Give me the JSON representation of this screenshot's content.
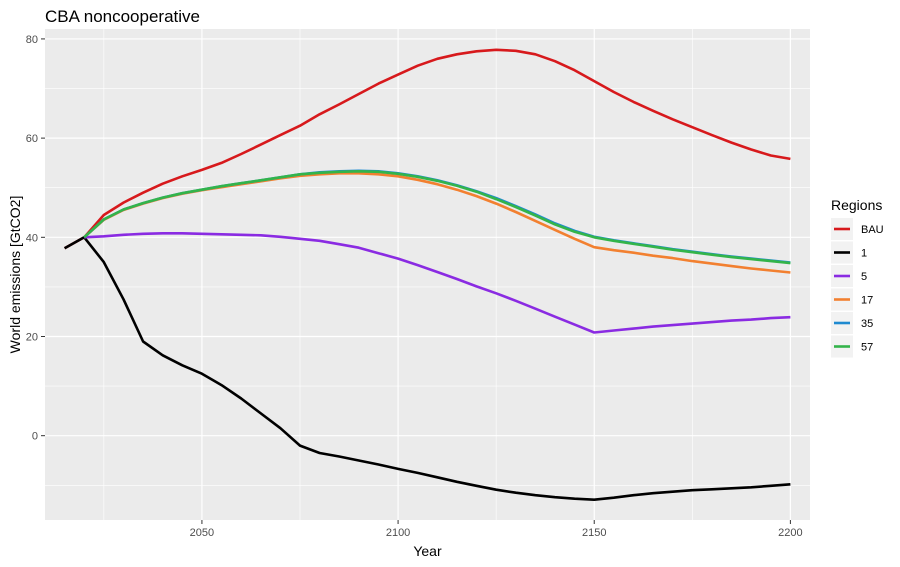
{
  "chart_data": {
    "type": "line",
    "title": "CBA noncooperative",
    "xlabel": "Year",
    "ylabel": "World emissions [GtCO2]",
    "xlim": [
      2010,
      2205
    ],
    "ylim": [
      -17,
      82
    ],
    "x_ticks": [
      2050,
      2100,
      2150,
      2200
    ],
    "y_ticks": [
      0,
      20,
      40,
      60,
      80
    ],
    "grid": true,
    "legend_position": "right",
    "legend_title": "Regions",
    "series": [
      {
        "name": "BAU",
        "color": "#d7191c",
        "points": [
          [
            2015,
            37.8
          ],
          [
            2020,
            40
          ],
          [
            2025,
            44.5
          ],
          [
            2030,
            47
          ],
          [
            2035,
            49
          ],
          [
            2040,
            50.8
          ],
          [
            2045,
            52.3
          ],
          [
            2050,
            53.6
          ],
          [
            2055,
            55
          ],
          [
            2060,
            56.8
          ],
          [
            2065,
            58.7
          ],
          [
            2070,
            60.6
          ],
          [
            2075,
            62.5
          ],
          [
            2080,
            64.8
          ],
          [
            2085,
            66.8
          ],
          [
            2090,
            68.9
          ],
          [
            2095,
            71
          ],
          [
            2100,
            72.8
          ],
          [
            2105,
            74.6
          ],
          [
            2110,
            76
          ],
          [
            2115,
            76.9
          ],
          [
            2120,
            77.5
          ],
          [
            2125,
            77.8
          ],
          [
            2130,
            77.6
          ],
          [
            2135,
            76.9
          ],
          [
            2140,
            75.5
          ],
          [
            2145,
            73.7
          ],
          [
            2150,
            71.5
          ],
          [
            2155,
            69.3
          ],
          [
            2160,
            67.3
          ],
          [
            2165,
            65.5
          ],
          [
            2170,
            63.8
          ],
          [
            2175,
            62.2
          ],
          [
            2180,
            60.6
          ],
          [
            2185,
            59.1
          ],
          [
            2190,
            57.7
          ],
          [
            2195,
            56.5
          ],
          [
            2200,
            55.8
          ]
        ]
      },
      {
        "name": "1",
        "color": "#000000",
        "points": [
          [
            2015,
            37.8
          ],
          [
            2020,
            40
          ],
          [
            2025,
            35
          ],
          [
            2030,
            27.5
          ],
          [
            2035,
            19
          ],
          [
            2040,
            16.2
          ],
          [
            2045,
            14.2
          ],
          [
            2050,
            12.5
          ],
          [
            2055,
            10.2
          ],
          [
            2060,
            7.5
          ],
          [
            2065,
            4.5
          ],
          [
            2070,
            1.5
          ],
          [
            2075,
            -2
          ],
          [
            2080,
            -3.5
          ],
          [
            2085,
            -4.2
          ],
          [
            2090,
            -5
          ],
          [
            2095,
            -5.8
          ],
          [
            2100,
            -6.7
          ],
          [
            2105,
            -7.5
          ],
          [
            2110,
            -8.4
          ],
          [
            2115,
            -9.3
          ],
          [
            2120,
            -10.1
          ],
          [
            2125,
            -10.9
          ],
          [
            2130,
            -11.5
          ],
          [
            2135,
            -12
          ],
          [
            2140,
            -12.4
          ],
          [
            2145,
            -12.7
          ],
          [
            2150,
            -12.9
          ],
          [
            2155,
            -12.5
          ],
          [
            2160,
            -12
          ],
          [
            2165,
            -11.6
          ],
          [
            2170,
            -11.3
          ],
          [
            2175,
            -11
          ],
          [
            2180,
            -10.8
          ],
          [
            2185,
            -10.6
          ],
          [
            2190,
            -10.4
          ],
          [
            2195,
            -10.1
          ],
          [
            2200,
            -9.8
          ]
        ]
      },
      {
        "name": "5",
        "color": "#8a2be2",
        "points": [
          [
            2020,
            40
          ],
          [
            2025,
            40.2
          ],
          [
            2030,
            40.5
          ],
          [
            2035,
            40.7
          ],
          [
            2040,
            40.8
          ],
          [
            2045,
            40.8
          ],
          [
            2050,
            40.7
          ],
          [
            2055,
            40.6
          ],
          [
            2060,
            40.5
          ],
          [
            2065,
            40.4
          ],
          [
            2070,
            40.1
          ],
          [
            2075,
            39.7
          ],
          [
            2080,
            39.3
          ],
          [
            2085,
            38.6
          ],
          [
            2090,
            37.9
          ],
          [
            2095,
            36.8
          ],
          [
            2100,
            35.7
          ],
          [
            2105,
            34.4
          ],
          [
            2110,
            33
          ],
          [
            2115,
            31.6
          ],
          [
            2120,
            30.1
          ],
          [
            2125,
            28.7
          ],
          [
            2130,
            27.2
          ],
          [
            2135,
            25.6
          ],
          [
            2140,
            24
          ],
          [
            2145,
            22.4
          ],
          [
            2150,
            20.8
          ],
          [
            2155,
            21.2
          ],
          [
            2160,
            21.6
          ],
          [
            2165,
            22
          ],
          [
            2170,
            22.3
          ],
          [
            2175,
            22.6
          ],
          [
            2180,
            22.9
          ],
          [
            2185,
            23.2
          ],
          [
            2190,
            23.4
          ],
          [
            2195,
            23.7
          ],
          [
            2200,
            23.9
          ]
        ]
      },
      {
        "name": "17",
        "color": "#f28030",
        "points": [
          [
            2020,
            40
          ],
          [
            2025,
            43.5
          ],
          [
            2030,
            45.5
          ],
          [
            2035,
            46.8
          ],
          [
            2040,
            47.9
          ],
          [
            2045,
            48.8
          ],
          [
            2050,
            49.5
          ],
          [
            2055,
            50.1
          ],
          [
            2060,
            50.7
          ],
          [
            2065,
            51.3
          ],
          [
            2070,
            51.9
          ],
          [
            2075,
            52.4
          ],
          [
            2080,
            52.7
          ],
          [
            2085,
            52.9
          ],
          [
            2090,
            52.9
          ],
          [
            2095,
            52.7
          ],
          [
            2100,
            52.3
          ],
          [
            2105,
            51.6
          ],
          [
            2110,
            50.7
          ],
          [
            2115,
            49.6
          ],
          [
            2120,
            48.3
          ],
          [
            2125,
            46.8
          ],
          [
            2130,
            45.1
          ],
          [
            2135,
            43.3
          ],
          [
            2140,
            41.5
          ],
          [
            2145,
            39.7
          ],
          [
            2150,
            38
          ],
          [
            2155,
            37.4
          ],
          [
            2160,
            36.9
          ],
          [
            2165,
            36.3
          ],
          [
            2170,
            35.8
          ],
          [
            2175,
            35.2
          ],
          [
            2180,
            34.7
          ],
          [
            2185,
            34.2
          ],
          [
            2190,
            33.7
          ],
          [
            2195,
            33.3
          ],
          [
            2200,
            32.9
          ]
        ]
      },
      {
        "name": "35",
        "color": "#1f8ad0",
        "points": [
          [
            2020,
            40
          ],
          [
            2025,
            43.6
          ],
          [
            2030,
            45.6
          ],
          [
            2035,
            46.9
          ],
          [
            2040,
            48
          ],
          [
            2045,
            48.9
          ],
          [
            2050,
            49.6
          ],
          [
            2055,
            50.3
          ],
          [
            2060,
            50.9
          ],
          [
            2065,
            51.5
          ],
          [
            2070,
            52.1
          ],
          [
            2075,
            52.7
          ],
          [
            2080,
            53.1
          ],
          [
            2085,
            53.3
          ],
          [
            2090,
            53.4
          ],
          [
            2095,
            53.3
          ],
          [
            2100,
            52.9
          ],
          [
            2105,
            52.3
          ],
          [
            2110,
            51.5
          ],
          [
            2115,
            50.5
          ],
          [
            2120,
            49.3
          ],
          [
            2125,
            47.9
          ],
          [
            2130,
            46.3
          ],
          [
            2135,
            44.6
          ],
          [
            2140,
            42.8
          ],
          [
            2145,
            41.3
          ],
          [
            2150,
            40.1
          ],
          [
            2155,
            39.4
          ],
          [
            2160,
            38.8
          ],
          [
            2165,
            38.2
          ],
          [
            2170,
            37.6
          ],
          [
            2175,
            37.1
          ],
          [
            2180,
            36.6
          ],
          [
            2185,
            36.1
          ],
          [
            2190,
            35.7
          ],
          [
            2195,
            35.3
          ],
          [
            2200,
            34.9
          ]
        ]
      },
      {
        "name": "57",
        "color": "#33b44a",
        "points": [
          [
            2020,
            40
          ],
          [
            2025,
            43.6
          ],
          [
            2030,
            45.6
          ],
          [
            2035,
            46.9
          ],
          [
            2040,
            48
          ],
          [
            2045,
            48.9
          ],
          [
            2050,
            49.6
          ],
          [
            2055,
            50.3
          ],
          [
            2060,
            50.9
          ],
          [
            2065,
            51.5
          ],
          [
            2070,
            52.1
          ],
          [
            2075,
            52.7
          ],
          [
            2080,
            53
          ],
          [
            2085,
            53.2
          ],
          [
            2090,
            53.3
          ],
          [
            2095,
            53.2
          ],
          [
            2100,
            52.8
          ],
          [
            2105,
            52.2
          ],
          [
            2110,
            51.4
          ],
          [
            2115,
            50.4
          ],
          [
            2120,
            49.2
          ],
          [
            2125,
            47.7
          ],
          [
            2130,
            46.1
          ],
          [
            2135,
            44.4
          ],
          [
            2140,
            42.6
          ],
          [
            2145,
            41.1
          ],
          [
            2150,
            40
          ],
          [
            2155,
            39.3
          ],
          [
            2160,
            38.7
          ],
          [
            2165,
            38.1
          ],
          [
            2170,
            37.5
          ],
          [
            2175,
            37
          ],
          [
            2180,
            36.5
          ],
          [
            2185,
            36
          ],
          [
            2190,
            35.6
          ],
          [
            2195,
            35.2
          ],
          [
            2200,
            34.8
          ]
        ]
      }
    ]
  }
}
